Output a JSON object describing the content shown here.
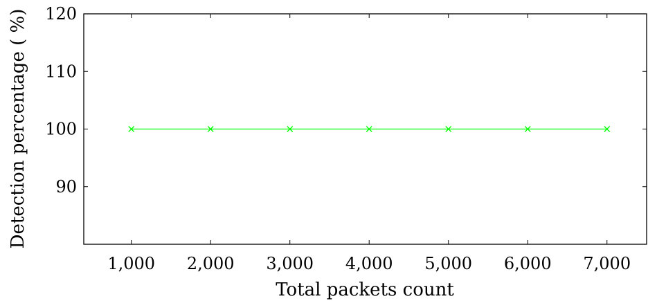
{
  "chart_data": {
    "type": "line",
    "xlabel": "Total packets count",
    "ylabel": "Detection percentage ( %)",
    "x": [
      1000,
      2000,
      3000,
      4000,
      5000,
      6000,
      7000
    ],
    "x_tick_labels": [
      "1,000",
      "2,000",
      "3,000",
      "4,000",
      "5,000",
      "6,000",
      "7,000"
    ],
    "y_ticks": [
      90,
      100,
      110,
      120
    ],
    "xlim": [
      400,
      7500
    ],
    "ylim": [
      80,
      120
    ],
    "grid": false,
    "series": [
      {
        "values": [
          100,
          100,
          100,
          100,
          100,
          100,
          100
        ],
        "color": "#00ff00",
        "marker": "x"
      }
    ]
  }
}
